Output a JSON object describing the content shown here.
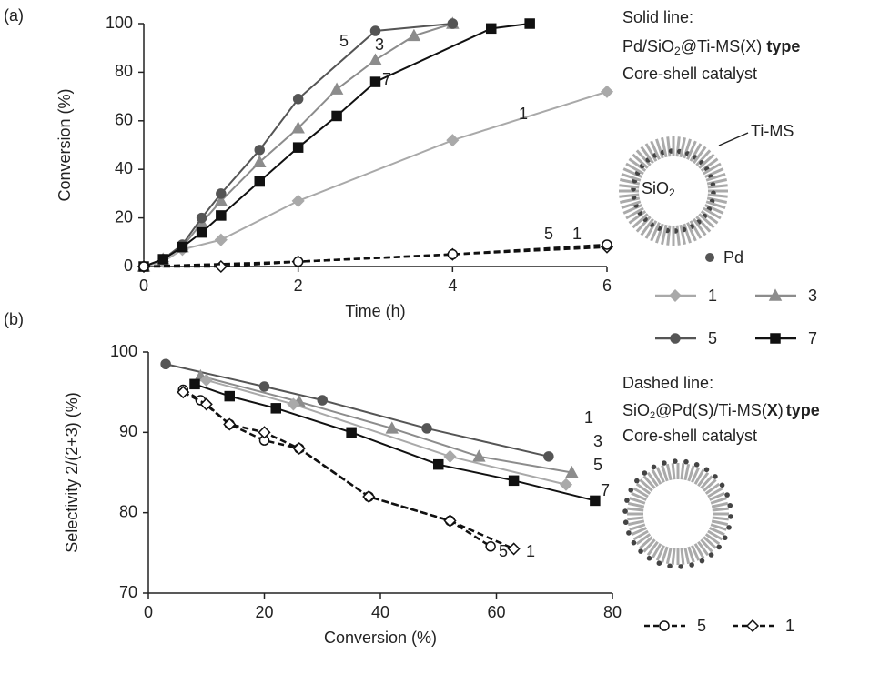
{
  "chart_data": [
    {
      "type": "line",
      "panel_label": "(a)",
      "x_label": "Time (h)",
      "y_label": "Conversion (%)",
      "xlim": [
        0,
        6
      ],
      "xticks": [
        0,
        2,
        4,
        6
      ],
      "ylim": [
        0,
        100
      ],
      "yticks": [
        0,
        20,
        40,
        60,
        80,
        100
      ],
      "series": [
        {
          "name": "1",
          "color": "#a9a9a9",
          "marker": "diamond",
          "filled": true,
          "dashed": false,
          "x": [
            0,
            0.25,
            0.5,
            1,
            2,
            4,
            6
          ],
          "values": [
            0,
            2,
            7,
            11,
            27,
            52,
            72
          ]
        },
        {
          "name": "3",
          "color": "#8c8c8c",
          "marker": "triangle",
          "filled": true,
          "dashed": false,
          "x": [
            0,
            0.25,
            0.5,
            0.75,
            1,
            1.5,
            2,
            2.5,
            3,
            3.5,
            4
          ],
          "values": [
            0,
            3,
            8,
            18,
            27,
            43,
            57,
            73,
            85,
            95,
            100
          ]
        },
        {
          "name": "5",
          "color": "#555555",
          "marker": "circle",
          "filled": true,
          "dashed": false,
          "x": [
            0,
            0.25,
            0.5,
            0.75,
            1,
            1.5,
            2,
            3,
            4
          ],
          "values": [
            0,
            3,
            9,
            20,
            30,
            48,
            69,
            97,
            100
          ]
        },
        {
          "name": "7",
          "color": "#111111",
          "marker": "square",
          "filled": true,
          "dashed": false,
          "x": [
            0,
            0.25,
            0.5,
            0.75,
            1,
            1.5,
            2,
            2.5,
            3,
            4.5,
            5
          ],
          "values": [
            0,
            3,
            8,
            14,
            21,
            35,
            49,
            62,
            76,
            98,
            100
          ]
        },
        {
          "name": "1",
          "color": "#111111",
          "marker": "diamond",
          "filled": false,
          "dashed": true,
          "x": [
            0,
            1,
            2,
            4,
            6
          ],
          "values": [
            0,
            0,
            2,
            5,
            8
          ]
        },
        {
          "name": "5",
          "color": "#111111",
          "marker": "circle",
          "filled": false,
          "dashed": true,
          "x": [
            0,
            2,
            4,
            6
          ],
          "values": [
            0,
            2,
            5,
            9
          ]
        }
      ]
    },
    {
      "type": "line",
      "panel_label": "(b)",
      "x_label": "Conversion (%)",
      "y_label": "Selectivity 2/(2+3) (%)",
      "xlim": [
        0,
        80
      ],
      "xticks": [
        0,
        20,
        40,
        60,
        80
      ],
      "ylim": [
        70,
        100
      ],
      "yticks": [
        70,
        80,
        90,
        100
      ],
      "series": [
        {
          "name": "5",
          "color": "#555555",
          "marker": "circle",
          "filled": true,
          "dashed": false,
          "x": [
            3,
            20,
            30,
            48,
            69
          ],
          "values": [
            98.5,
            95.7,
            94,
            90.5,
            87
          ]
        },
        {
          "name": "3",
          "color": "#8c8c8c",
          "marker": "triangle",
          "filled": true,
          "dashed": false,
          "x": [
            9,
            26,
            42,
            57,
            73
          ],
          "values": [
            97,
            93.8,
            90.5,
            87,
            85
          ]
        },
        {
          "name": "1",
          "color": "#a9a9a9",
          "marker": "diamond",
          "filled": true,
          "dashed": false,
          "x": [
            10,
            25,
            52,
            72
          ],
          "values": [
            96.5,
            93.5,
            87,
            83.5
          ]
        },
        {
          "name": "7",
          "color": "#111111",
          "marker": "square",
          "filled": true,
          "dashed": false,
          "x": [
            8,
            14,
            22,
            35,
            50,
            63,
            77
          ],
          "values": [
            96,
            94.5,
            93,
            90,
            86,
            84,
            81.5
          ]
        },
        {
          "name": "5",
          "color": "#111111",
          "marker": "circle",
          "filled": false,
          "dashed": true,
          "x": [
            6,
            9,
            14,
            20,
            26,
            38,
            52,
            59
          ],
          "values": [
            95.3,
            94,
            91,
            89,
            88,
            82,
            79,
            75.8
          ]
        },
        {
          "name": "1",
          "color": "#111111",
          "marker": "diamond",
          "filled": false,
          "dashed": true,
          "x": [
            6,
            10,
            14,
            20,
            26,
            38,
            52,
            63
          ],
          "values": [
            95,
            93.5,
            91,
            90,
            88,
            82,
            79,
            75.5
          ]
        }
      ]
    }
  ],
  "schematic": {
    "solid_heading": "Solid line:",
    "solid_type": [
      "Pd/SiO",
      "2",
      "@Ti-MS(X)",
      "type"
    ],
    "solid_caption": "Core-shell catalyst",
    "shell_label": "Ti-MS",
    "core_label": [
      "SiO",
      "2"
    ],
    "pd_label": "Pd",
    "dashed_heading": "Dashed line:",
    "dashed_type": [
      "SiO",
      "2",
      "@Pd(S)/Ti-MS(",
      "X",
      ")",
      "type"
    ],
    "dashed_caption": "Core-shell catalyst"
  }
}
